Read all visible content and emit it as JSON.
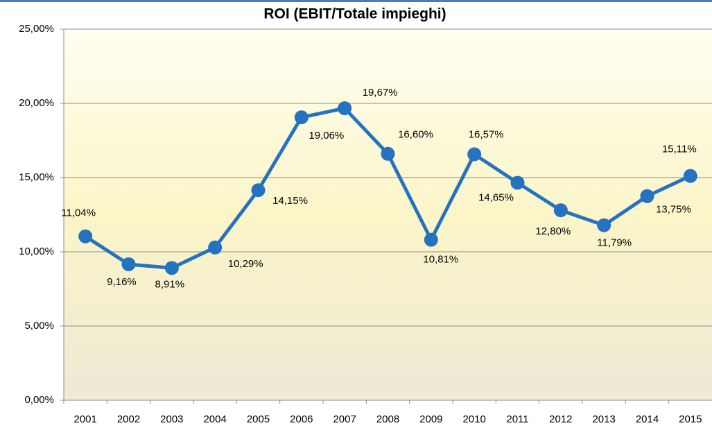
{
  "chart_data": {
    "type": "line",
    "title": "ROI (EBIT/Totale impieghi)",
    "categories": [
      "2001",
      "2002",
      "2003",
      "2004",
      "2005",
      "2006",
      "2007",
      "2008",
      "2009",
      "2010",
      "2011",
      "2012",
      "2013",
      "2014",
      "2015"
    ],
    "series": [
      {
        "name": "ROI",
        "color": "#2472c0",
        "values": [
          11.04,
          9.16,
          8.91,
          10.29,
          14.15,
          19.06,
          19.67,
          16.6,
          10.81,
          16.57,
          14.65,
          12.8,
          11.79,
          13.75,
          15.11
        ],
        "value_labels": [
          "11,04%",
          "9,16%",
          "8,91%",
          "10,29%",
          "14,15%",
          "19,06%",
          "19,67%",
          "16,60%",
          "10,81%",
          "16,57%",
          "14,65%",
          "12,80%",
          "11,79%",
          "13,75%",
          "15,11%"
        ]
      }
    ],
    "ylim": [
      0,
      25
    ],
    "yticks": [
      {
        "value": 0,
        "label": "0,00%"
      },
      {
        "value": 5,
        "label": "5,00%"
      },
      {
        "value": 10,
        "label": "10,00%"
      },
      {
        "value": 15,
        "label": "15,00%"
      },
      {
        "value": 20,
        "label": "20,00%"
      },
      {
        "value": 25,
        "label": "25,00%"
      }
    ],
    "grid": true
  }
}
